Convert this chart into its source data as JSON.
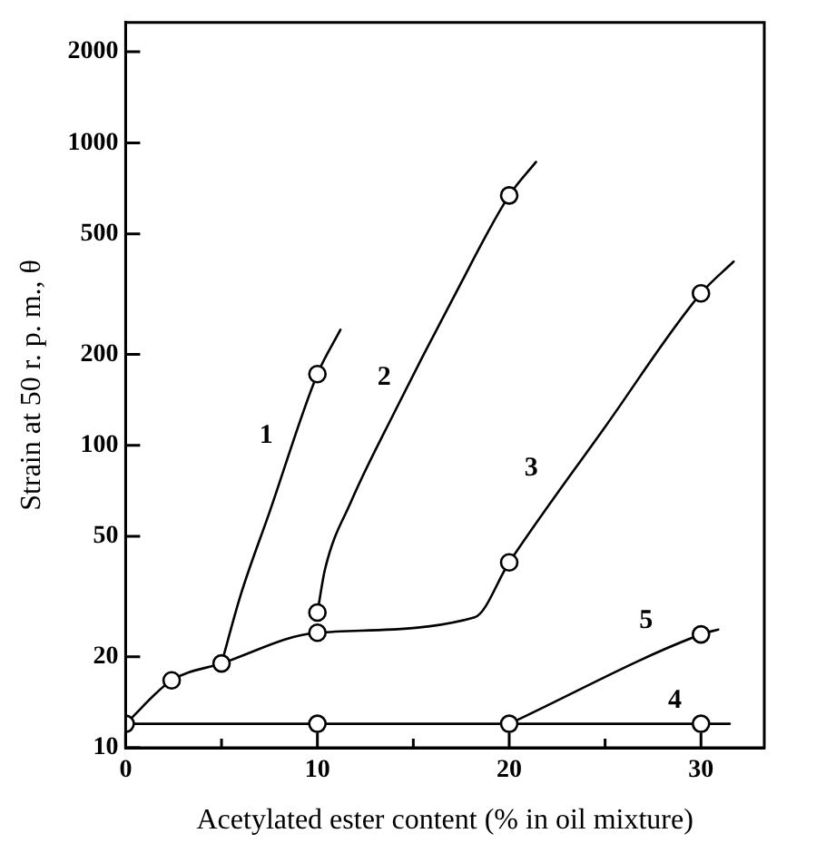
{
  "chart_data": {
    "type": "line",
    "xlabel": "Acetylated ester content (% in oil mixture)",
    "ylabel": "Strain at 50 r. p. m., θ",
    "log": "y",
    "grid": false,
    "legend": false,
    "marker": "none",
    "line_style": "solid",
    "xlim": [
      0,
      33.3
    ],
    "xticks": [
      0,
      {
        "value": 5,
        "label": null
      },
      10,
      {
        "value": 15,
        "label": null
      },
      20,
      {
        "value": 25,
        "label": null
      },
      30
    ],
    "ylim": [
      10,
      2500
    ],
    "yticks": [
      10,
      20,
      50,
      100,
      200,
      500,
      1000,
      2000
    ],
    "series": [
      {
        "name": "1",
        "color": "#000000",
        "x": [
          5,
          6,
          7.5,
          10,
          11.2
        ],
        "values": [
          19,
          32,
          60,
          172,
          241
        ]
      },
      {
        "name": "2",
        "color": "#000000",
        "x": [
          10,
          10.4,
          11.75,
          14,
          17,
          20,
          21.4
        ],
        "values": [
          28,
          39,
          65,
          128,
          300,
          670,
          865
        ]
      },
      {
        "name": "3",
        "color": "#000000",
        "x": [
          0,
          2.4,
          5,
          10,
          18.2,
          20,
          25,
          30,
          31.7
        ],
        "values": [
          12,
          16.7,
          19,
          24,
          27,
          41,
          115,
          318,
          405
        ]
      },
      {
        "name": "4",
        "color": "#000000",
        "x": [
          0,
          31.5
        ],
        "values": [
          12,
          12
        ]
      },
      {
        "name": "5",
        "color": "#000000",
        "x": [
          20,
          30,
          30.9
        ],
        "values": [
          12,
          23.7,
          24.6
        ]
      },
      {
        "type": "scatter",
        "marker": "circle",
        "color": "#000000",
        "x": [
          0,
          2.4,
          5,
          10,
          10,
          10,
          20,
          20,
          30,
          10,
          20,
          30,
          30
        ],
        "values": [
          12,
          16.7,
          19,
          24,
          28,
          172,
          41,
          670,
          318,
          12,
          12,
          12,
          23.7
        ]
      }
    ]
  }
}
